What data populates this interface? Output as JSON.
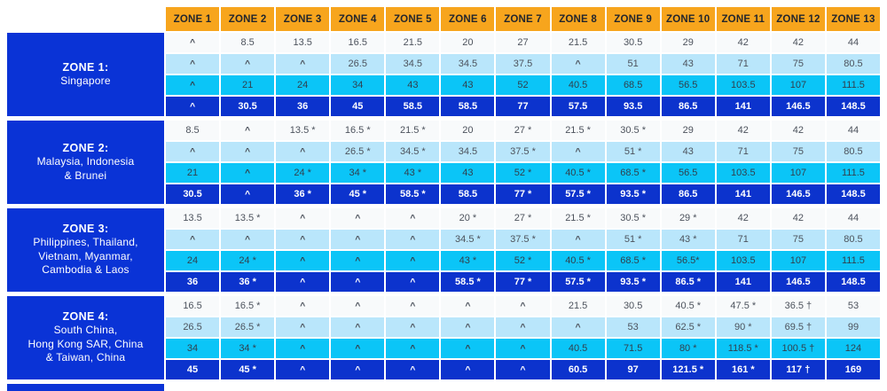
{
  "colors": {
    "header_bg": "#F7A51D",
    "header_text": "#23262d",
    "label_bg": "#0a33d6",
    "row_white": "#f8fafb",
    "row_pale": "#b9e6fb",
    "row_cyan": "#0bc5f7",
    "row_dark": "#0c33cd",
    "cell_text": "#4c525c"
  },
  "symbols": {
    "not_available": "^",
    "asterisk": "*",
    "dagger": "†"
  },
  "chart_data": {
    "type": "table",
    "column_headers": [
      "ZONE 1",
      "ZONE 2",
      "ZONE 3",
      "ZONE 4",
      "ZONE 5",
      "ZONE 6",
      "ZONE 7",
      "ZONE 8",
      "ZONE 9",
      "ZONE 10",
      "ZONE 11",
      "ZONE 12",
      "ZONE 13"
    ],
    "row_groups": [
      {
        "label_title": "ZONE 1:",
        "label_region": "Singapore",
        "rows": [
          [
            "^",
            "8.5",
            "13.5",
            "16.5",
            "21.5",
            "20",
            "27",
            "21.5",
            "30.5",
            "29",
            "42",
            "42",
            "44"
          ],
          [
            "^",
            "^",
            "^",
            "26.5",
            "34.5",
            "34.5",
            "37.5",
            "^",
            "51",
            "43",
            "71",
            "75",
            "80.5"
          ],
          [
            "^",
            "21",
            "24",
            "34",
            "43",
            "43",
            "52",
            "40.5",
            "68.5",
            "56.5",
            "103.5",
            "107",
            "111.5"
          ],
          [
            "^",
            "30.5",
            "36",
            "45",
            "58.5",
            "58.5",
            "77",
            "57.5",
            "93.5",
            "86.5",
            "141",
            "146.5",
            "148.5"
          ]
        ]
      },
      {
        "label_title": "ZONE 2:",
        "label_region": "Malaysia, Indonesia\n& Brunei",
        "rows": [
          [
            "8.5",
            "^",
            "13.5 *",
            "16.5 *",
            "21.5 *",
            "20",
            "27 *",
            "21.5 *",
            "30.5 *",
            "29",
            "42",
            "42",
            "44"
          ],
          [
            "^",
            "^",
            "^",
            "26.5 *",
            "34.5 *",
            "34.5",
            "37.5 *",
            "^",
            "51 *",
            "43",
            "71",
            "75",
            "80.5"
          ],
          [
            "21",
            "^",
            "24 *",
            "34 *",
            "43 *",
            "43",
            "52 *",
            "40.5 *",
            "68.5 *",
            "56.5",
            "103.5",
            "107",
            "111.5"
          ],
          [
            "30.5",
            "^",
            "36 *",
            "45 *",
            "58.5 *",
            "58.5",
            "77 *",
            "57.5 *",
            "93.5 *",
            "86.5",
            "141",
            "146.5",
            "148.5"
          ]
        ]
      },
      {
        "label_title": "ZONE 3:",
        "label_region": "Philippines, Thailand,\nVietnam, Myanmar,\nCambodia & Laos",
        "rows": [
          [
            "13.5",
            "13.5 *",
            "^",
            "^",
            "^",
            "20 *",
            "27 *",
            "21.5 *",
            "30.5 *",
            "29 *",
            "42",
            "42",
            "44"
          ],
          [
            "^",
            "^",
            "^",
            "^",
            "^",
            "34.5 *",
            "37.5 *",
            "^",
            "51 *",
            "43 *",
            "71",
            "75",
            "80.5"
          ],
          [
            "24",
            "24 *",
            "^",
            "^",
            "^",
            "43 *",
            "52 *",
            "40.5 *",
            "68.5 *",
            "56.5*",
            "103.5",
            "107",
            "111.5"
          ],
          [
            "36",
            "36 *",
            "^",
            "^",
            "^",
            "58.5 *",
            "77 *",
            "57.5 *",
            "93.5 *",
            "86.5 *",
            "141",
            "146.5",
            "148.5"
          ]
        ]
      },
      {
        "label_title": "ZONE 4:",
        "label_region": "South China,\nHong Kong SAR, China\n& Taiwan, China",
        "rows": [
          [
            "16.5",
            "16.5 *",
            "^",
            "^",
            "^",
            "^",
            "^",
            "21.5",
            "30.5",
            "40.5 *",
            "47.5 *",
            "36.5 †",
            "53"
          ],
          [
            "26.5",
            "26.5 *",
            "^",
            "^",
            "^",
            "^",
            "^",
            "^",
            "53",
            "62.5 *",
            "90 *",
            "69.5 †",
            "99"
          ],
          [
            "34",
            "34 *",
            "^",
            "^",
            "^",
            "^",
            "^",
            "40.5",
            "71.5",
            "80 *",
            "118.5 *",
            "100.5 †",
            "124"
          ],
          [
            "45",
            "45 *",
            "^",
            "^",
            "^",
            "^",
            "^",
            "60.5",
            "97",
            "121.5 *",
            "161 *",
            "117 †",
            "169"
          ]
        ]
      }
    ]
  }
}
